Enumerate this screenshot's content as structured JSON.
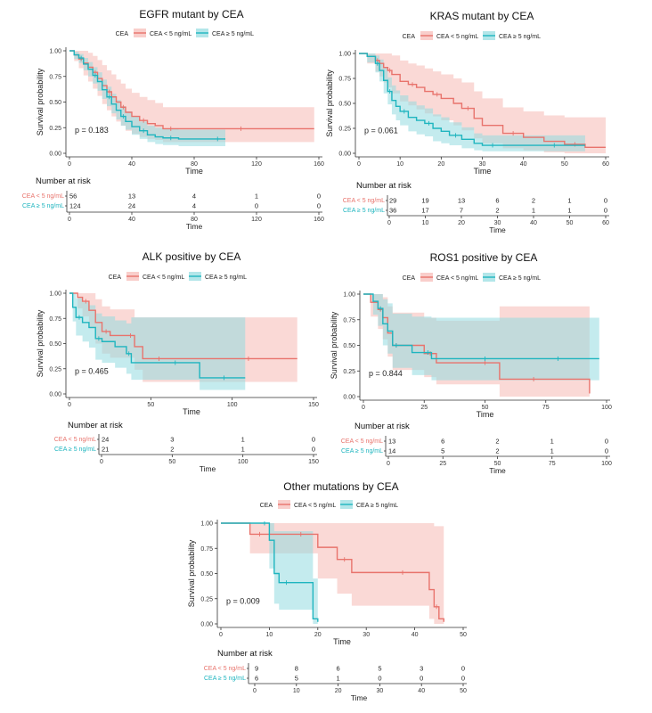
{
  "legend_title": "CEA",
  "group_low": "CEA < 5 ng/mL",
  "group_high": "CEA ≥ 5 ng/mL",
  "colors": {
    "low": "#e8736c",
    "high": "#1fb5bf",
    "low_fill": "#f6b9b5",
    "high_fill": "#93dbe0",
    "axis": "#333333"
  },
  "chart_data": [
    {
      "type": "line",
      "title": "EGFR mutant by CEA",
      "xlabel": "Time",
      "ylabel": "Survival probability",
      "xlim": [
        0,
        160
      ],
      "ylim": [
        0,
        1
      ],
      "xticks": [
        0,
        40,
        80,
        120,
        160
      ],
      "yticks": [
        0,
        0.25,
        0.5,
        0.75,
        1
      ],
      "pvalue": "p = 0.183",
      "series": [
        {
          "name": "CEA < 5 ng/mL",
          "x": [
            0,
            3,
            6,
            9,
            12,
            15,
            18,
            21,
            24,
            27,
            30,
            33,
            36,
            40,
            45,
            50,
            55,
            60,
            70,
            80,
            100,
            120,
            140,
            157
          ],
          "y": [
            1,
            0.96,
            0.92,
            0.88,
            0.84,
            0.79,
            0.73,
            0.66,
            0.6,
            0.55,
            0.5,
            0.45,
            0.4,
            0.36,
            0.32,
            0.29,
            0.27,
            0.24,
            0.24,
            0.24,
            0.24,
            0.24,
            0.24,
            0.24
          ],
          "upper": [
            1,
            1,
            1,
            1,
            0.98,
            0.95,
            0.91,
            0.86,
            0.81,
            0.77,
            0.72,
            0.68,
            0.63,
            0.59,
            0.55,
            0.52,
            0.49,
            0.45,
            0.45,
            0.45,
            0.45,
            0.45,
            0.45,
            0.45
          ],
          "lower": [
            1,
            0.9,
            0.83,
            0.76,
            0.7,
            0.63,
            0.56,
            0.48,
            0.42,
            0.36,
            0.31,
            0.27,
            0.22,
            0.19,
            0.16,
            0.14,
            0.13,
            0.11,
            0.11,
            0.11,
            0.11,
            0.11,
            0.11,
            0.11
          ]
        },
        {
          "name": "CEA ≥ 5 ng/mL",
          "x": [
            0,
            3,
            6,
            9,
            12,
            15,
            18,
            21,
            24,
            27,
            30,
            33,
            36,
            40,
            45,
            50,
            55,
            60,
            70,
            80,
            90,
            100
          ],
          "y": [
            1,
            0.96,
            0.93,
            0.87,
            0.82,
            0.76,
            0.7,
            0.62,
            0.55,
            0.48,
            0.42,
            0.36,
            0.31,
            0.26,
            0.22,
            0.18,
            0.16,
            0.15,
            0.14,
            0.14,
            0.14,
            0.14
          ],
          "upper": [
            1,
            0.99,
            0.97,
            0.93,
            0.89,
            0.84,
            0.79,
            0.72,
            0.65,
            0.58,
            0.52,
            0.46,
            0.41,
            0.36,
            0.31,
            0.27,
            0.25,
            0.24,
            0.23,
            0.23,
            0.23,
            0.23
          ],
          "lower": [
            1,
            0.92,
            0.88,
            0.81,
            0.75,
            0.68,
            0.61,
            0.53,
            0.46,
            0.39,
            0.33,
            0.27,
            0.23,
            0.18,
            0.14,
            0.11,
            0.09,
            0.08,
            0.07,
            0.07,
            0.07,
            0.07
          ]
        }
      ],
      "risk_times": [
        "0",
        "40",
        "80",
        "120",
        "160"
      ],
      "risk_low": [
        "56",
        "13",
        "4",
        "1",
        "0"
      ],
      "risk_high": [
        "124",
        "24",
        "4",
        "0",
        "0"
      ]
    },
    {
      "type": "line",
      "title": "KRAS mutant by CEA",
      "xlabel": "Time",
      "ylabel": "Survival probability",
      "xlim": [
        0,
        60
      ],
      "ylim": [
        0,
        1
      ],
      "xticks": [
        0,
        10,
        20,
        30,
        40,
        50,
        60
      ],
      "yticks": [
        0,
        0.25,
        0.5,
        0.75,
        1
      ],
      "pvalue": "p = 0.061",
      "series": [
        {
          "name": "CEA < 5 ng/mL",
          "x": [
            0,
            2,
            4,
            5,
            6,
            7,
            8,
            10,
            12,
            14,
            16,
            18,
            20,
            23,
            25,
            28,
            30,
            35,
            40,
            45,
            50,
            55,
            60
          ],
          "y": [
            1,
            0.97,
            0.93,
            0.9,
            0.86,
            0.83,
            0.79,
            0.72,
            0.69,
            0.66,
            0.62,
            0.59,
            0.55,
            0.5,
            0.45,
            0.35,
            0.28,
            0.2,
            0.16,
            0.12,
            0.09,
            0.06,
            0.06
          ],
          "upper": [
            1,
            1,
            1,
            1,
            1,
            1,
            0.98,
            0.93,
            0.9,
            0.88,
            0.85,
            0.82,
            0.79,
            0.75,
            0.71,
            0.62,
            0.55,
            0.46,
            0.42,
            0.38,
            0.36,
            0.36,
            0.36
          ],
          "lower": [
            1,
            0.9,
            0.82,
            0.77,
            0.71,
            0.66,
            0.6,
            0.52,
            0.48,
            0.44,
            0.4,
            0.37,
            0.33,
            0.28,
            0.23,
            0.15,
            0.1,
            0.05,
            0.03,
            0.01,
            0,
            0,
            0
          ]
        },
        {
          "name": "CEA ≥ 5 ng/mL",
          "x": [
            0,
            2,
            4,
            5,
            6,
            7,
            8,
            9,
            10,
            12,
            14,
            16,
            18,
            20,
            22,
            25,
            28,
            30,
            35,
            40,
            45,
            50,
            55
          ],
          "y": [
            1,
            0.97,
            0.9,
            0.83,
            0.73,
            0.62,
            0.53,
            0.47,
            0.42,
            0.36,
            0.33,
            0.3,
            0.25,
            0.22,
            0.18,
            0.14,
            0.1,
            0.08,
            0.08,
            0.08,
            0.08,
            0.08,
            0.08
          ],
          "upper": [
            1,
            1,
            0.98,
            0.94,
            0.86,
            0.76,
            0.68,
            0.63,
            0.58,
            0.52,
            0.48,
            0.45,
            0.39,
            0.36,
            0.31,
            0.26,
            0.2,
            0.18,
            0.18,
            0.18,
            0.18,
            0.18,
            0.18
          ],
          "lower": [
            1,
            0.91,
            0.81,
            0.72,
            0.6,
            0.49,
            0.39,
            0.33,
            0.28,
            0.22,
            0.19,
            0.17,
            0.12,
            0.1,
            0.08,
            0.05,
            0.03,
            0.02,
            0.02,
            0.02,
            0.02,
            0.02,
            0.02
          ]
        }
      ],
      "risk_times": [
        "0",
        "10",
        "20",
        "30",
        "40",
        "50",
        "60"
      ],
      "risk_low": [
        "29",
        "19",
        "13",
        "6",
        "2",
        "1",
        "0"
      ],
      "risk_high": [
        "36",
        "17",
        "7",
        "2",
        "1",
        "1",
        "0"
      ]
    },
    {
      "type": "line",
      "title": "ALK positive by CEA",
      "xlabel": "Time",
      "ylabel": "Survival probability",
      "xlim": [
        0,
        150
      ],
      "ylim": [
        0,
        1
      ],
      "xticks": [
        0,
        50,
        100,
        150
      ],
      "yticks": [
        0,
        0.25,
        0.5,
        0.75,
        1
      ],
      "pvalue": "p = 0.465",
      "series": [
        {
          "name": "CEA < 5 ng/mL",
          "x": [
            0,
            5,
            8,
            12,
            16,
            20,
            25,
            30,
            35,
            40,
            45,
            50,
            60,
            80,
            100,
            120,
            140
          ],
          "y": [
            1,
            0.96,
            0.92,
            0.83,
            0.71,
            0.62,
            0.58,
            0.58,
            0.58,
            0.47,
            0.35,
            0.35,
            0.35,
            0.35,
            0.35,
            0.35,
            0.35
          ],
          "upper": [
            1,
            1,
            1,
            1,
            0.94,
            0.87,
            0.84,
            0.84,
            0.84,
            0.76,
            0.76,
            0.76,
            0.76,
            0.76,
            0.76,
            0.76,
            0.76
          ],
          "lower": [
            1,
            0.85,
            0.77,
            0.65,
            0.5,
            0.4,
            0.36,
            0.36,
            0.36,
            0.24,
            0.12,
            0.12,
            0.12,
            0.12,
            0.12,
            0.12,
            0.12
          ]
        },
        {
          "name": "CEA ≥ 5 ng/mL",
          "x": [
            0,
            2,
            4,
            8,
            12,
            16,
            20,
            28,
            35,
            38,
            50,
            60,
            70,
            80,
            90,
            100,
            108
          ],
          "y": [
            1,
            0.86,
            0.76,
            0.71,
            0.66,
            0.55,
            0.52,
            0.47,
            0.4,
            0.31,
            0.31,
            0.31,
            0.31,
            0.16,
            0.16,
            0.16,
            0.16
          ],
          "upper": [
            1,
            1,
            0.95,
            0.91,
            0.88,
            0.8,
            0.77,
            0.73,
            0.7,
            0.76,
            0.76,
            0.76,
            0.76,
            0.76,
            0.76,
            0.76,
            0.76
          ],
          "lower": [
            1,
            0.72,
            0.58,
            0.52,
            0.46,
            0.34,
            0.31,
            0.26,
            0.2,
            0.14,
            0.14,
            0.14,
            0.14,
            0.04,
            0.04,
            0.04,
            0.04
          ]
        }
      ],
      "risk_times": [
        "0",
        "50",
        "100",
        "150"
      ],
      "risk_low": [
        "24",
        "3",
        "1",
        "0"
      ],
      "risk_high": [
        "21",
        "2",
        "1",
        "0"
      ]
    },
    {
      "type": "line",
      "title": "ROS1 positive by CEA",
      "xlabel": "Time",
      "ylabel": "Survival probability",
      "xlim": [
        0,
        100
      ],
      "ylim": [
        0,
        1
      ],
      "xticks": [
        0,
        25,
        50,
        75,
        100
      ],
      "yticks": [
        0,
        0.25,
        0.5,
        0.75,
        1
      ],
      "pvalue": "p = 0.844",
      "series": [
        {
          "name": "CEA < 5 ng/mL",
          "x": [
            0,
            3,
            6,
            8,
            10,
            12,
            15,
            20,
            25,
            30,
            35,
            45,
            55,
            56,
            65,
            75,
            85,
            93
          ],
          "y": [
            1,
            0.92,
            0.85,
            0.77,
            0.62,
            0.5,
            0.5,
            0.5,
            0.42,
            0.33,
            0.33,
            0.33,
            0.33,
            0.17,
            0.17,
            0.17,
            0.17,
            0.03
          ],
          "upper": [
            1,
            1,
            1,
            0.97,
            0.88,
            0.82,
            0.82,
            0.82,
            0.77,
            0.74,
            0.74,
            0.74,
            0.74,
            0.88,
            0.88,
            0.88,
            0.88,
            0.88
          ],
          "lower": [
            1,
            0.78,
            0.66,
            0.56,
            0.39,
            0.26,
            0.26,
            0.26,
            0.19,
            0.12,
            0.12,
            0.12,
            0.12,
            0,
            0,
            0,
            0,
            0
          ]
        },
        {
          "name": "CEA ≥ 5 ng/mL",
          "x": [
            0,
            4,
            6,
            8,
            10,
            12,
            15,
            20,
            25,
            28,
            35,
            45,
            55,
            65,
            75,
            85,
            97
          ],
          "y": [
            1,
            0.93,
            0.86,
            0.71,
            0.64,
            0.5,
            0.5,
            0.43,
            0.43,
            0.37,
            0.37,
            0.37,
            0.37,
            0.37,
            0.37,
            0.37,
            0.37
          ],
          "upper": [
            1,
            1,
            1,
            0.95,
            0.91,
            0.81,
            0.81,
            0.78,
            0.78,
            0.77,
            0.77,
            0.77,
            0.77,
            0.77,
            0.77,
            0.77,
            0.77
          ],
          "lower": [
            1,
            0.8,
            0.69,
            0.5,
            0.42,
            0.28,
            0.28,
            0.21,
            0.21,
            0.16,
            0.16,
            0.16,
            0.16,
            0.16,
            0.16,
            0.16,
            0.16
          ]
        }
      ],
      "risk_times": [
        "0",
        "25",
        "50",
        "75",
        "100"
      ],
      "risk_low": [
        "13",
        "6",
        "2",
        "1",
        "0"
      ],
      "risk_high": [
        "14",
        "5",
        "2",
        "1",
        "0"
      ]
    },
    {
      "type": "line",
      "title": "Other mutations by CEA",
      "xlabel": "Time",
      "ylabel": "Survival probability",
      "xlim": [
        0,
        50
      ],
      "ylim": [
        0,
        1
      ],
      "xticks": [
        0,
        10,
        20,
        30,
        40,
        50
      ],
      "yticks": [
        0,
        0.25,
        0.5,
        0.75,
        1
      ],
      "pvalue": "p = 0.009",
      "series": [
        {
          "name": "CEA < 5 ng/mL",
          "x": [
            0,
            5,
            6,
            10,
            12,
            15,
            18,
            20,
            24,
            27,
            30,
            35,
            40,
            43,
            44,
            45,
            46
          ],
          "y": [
            1,
            1,
            0.89,
            0.89,
            0.89,
            0.89,
            0.89,
            0.76,
            0.64,
            0.51,
            0.51,
            0.51,
            0.51,
            0.34,
            0.17,
            0.05,
            0.02
          ],
          "upper": [
            1,
            1,
            1,
            1,
            1,
            1,
            1,
            1,
            1,
            1,
            1,
            1,
            1,
            1,
            0.97,
            0.97,
            0.97
          ],
          "lower": [
            1,
            1,
            0.7,
            0.7,
            0.7,
            0.7,
            0.7,
            0.45,
            0.3,
            0.18,
            0.18,
            0.18,
            0.18,
            0.05,
            0,
            0,
            0
          ]
        },
        {
          "name": "CEA ≥ 5 ng/mL",
          "x": [
            0,
            5,
            8,
            10,
            11,
            12,
            15,
            19,
            20
          ],
          "y": [
            1,
            1,
            1,
            0.83,
            0.5,
            0.41,
            0.41,
            0.05,
            0.02
          ],
          "upper": [
            1,
            1,
            1,
            1,
            0.92,
            0.92,
            0.92,
            0.45,
            0.45
          ],
          "lower": [
            1,
            1,
            1,
            0.55,
            0.2,
            0.14,
            0.14,
            0,
            0
          ]
        }
      ],
      "risk_times": [
        "0",
        "10",
        "20",
        "30",
        "40",
        "50"
      ],
      "risk_low": [
        "9",
        "8",
        "6",
        "5",
        "3",
        "0"
      ],
      "risk_high": [
        "6",
        "5",
        "1",
        "0",
        "0",
        "0"
      ]
    }
  ],
  "risk_title": "Number at risk"
}
